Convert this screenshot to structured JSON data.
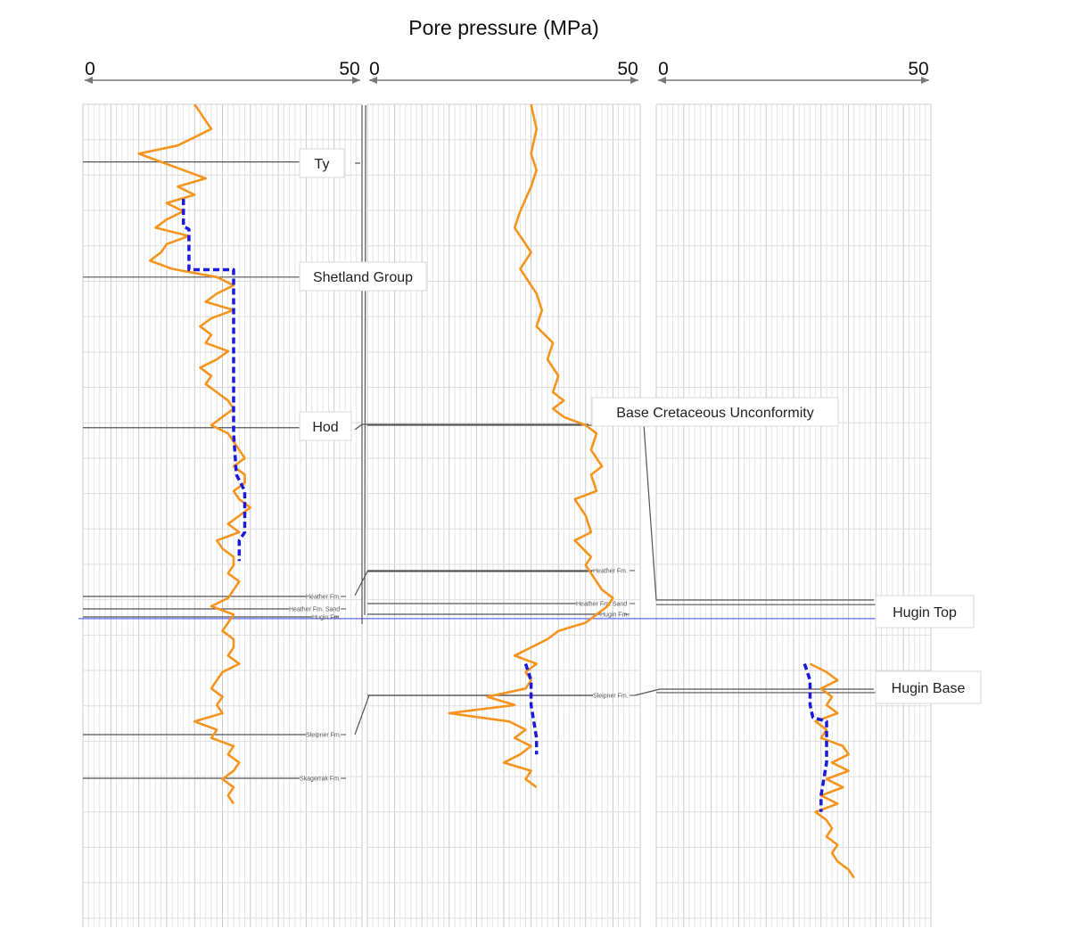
{
  "chart_data": {
    "type": "line",
    "title": "Pore pressure (MPa)",
    "panels": [
      {
        "xlim": [
          0,
          50
        ],
        "tick_labels": [
          "0",
          "50"
        ],
        "markers": [
          {
            "label": "Ty",
            "style": "box"
          },
          {
            "label": "Shetland Group",
            "style": "box"
          },
          {
            "label": "Hod",
            "style": "box"
          },
          {
            "label": "Heather Fm.",
            "style": "small"
          },
          {
            "label": "Heather Fm. Sand",
            "style": "small"
          },
          {
            "label": "Hugin Fm.",
            "style": "small"
          },
          {
            "label": "Sleipner Fm.",
            "style": "small"
          },
          {
            "label": "Skagerrak Fm.",
            "style": "small"
          }
        ],
        "series": [
          {
            "color": "#f7941d",
            "style": "solid",
            "points": [
              [
                20,
                0
              ],
              [
                21,
                1
              ],
              [
                22,
                2
              ],
              [
                23,
                3
              ],
              [
                20,
                4
              ],
              [
                17,
                5
              ],
              [
                10,
                6
              ],
              [
                14,
                7
              ],
              [
                18,
                8
              ],
              [
                22,
                9
              ],
              [
                17,
                10
              ],
              [
                20,
                11
              ],
              [
                15,
                12
              ],
              [
                18,
                13
              ],
              [
                15,
                14
              ],
              [
                13,
                15
              ],
              [
                19,
                16
              ],
              [
                15,
                17
              ],
              [
                14,
                18
              ],
              [
                12,
                19
              ],
              [
                16,
                20
              ],
              [
                24,
                21
              ],
              [
                27,
                22
              ],
              [
                24,
                23
              ],
              [
                22,
                24
              ],
              [
                27,
                25
              ],
              [
                23,
                26
              ],
              [
                21,
                27
              ],
              [
                23,
                28
              ],
              [
                22,
                29
              ],
              [
                26,
                30
              ],
              [
                24,
                31
              ],
              [
                21,
                32
              ],
              [
                23,
                33
              ],
              [
                22,
                34
              ],
              [
                24,
                35
              ],
              [
                26,
                36
              ],
              [
                27,
                37
              ],
              [
                25,
                38
              ],
              [
                23,
                39
              ],
              [
                26,
                40
              ],
              [
                27,
                41
              ],
              [
                28,
                42
              ],
              [
                29,
                43
              ],
              [
                27,
                44
              ],
              [
                29,
                45
              ],
              [
                29,
                46
              ],
              [
                27,
                47
              ],
              [
                28,
                48
              ],
              [
                30,
                49
              ],
              [
                28,
                50
              ],
              [
                26,
                51
              ],
              [
                28,
                52
              ],
              [
                24,
                53
              ],
              [
                25,
                54
              ],
              [
                27,
                55
              ],
              [
                27,
                56
              ],
              [
                26,
                57
              ],
              [
                28,
                58
              ],
              [
                27,
                59
              ],
              [
                26,
                60
              ],
              [
                23,
                61
              ],
              [
                27,
                62
              ],
              [
                26,
                63
              ],
              [
                25,
                64
              ],
              [
                27,
                65
              ],
              [
                27,
                66
              ],
              [
                26,
                67
              ],
              [
                28,
                68
              ],
              [
                25,
                69
              ],
              [
                24,
                70
              ],
              [
                23,
                71
              ],
              [
                25,
                72
              ],
              [
                24,
                73
              ],
              [
                25,
                74
              ],
              [
                20,
                75
              ],
              [
                24,
                76
              ],
              [
                23,
                77
              ],
              [
                27,
                78
              ],
              [
                26,
                79
              ],
              [
                28,
                80
              ],
              [
                27,
                81
              ],
              [
                25,
                82
              ],
              [
                27,
                83
              ],
              [
                26,
                84
              ],
              [
                27,
                85
              ]
            ]
          },
          {
            "color": "#1a1adc",
            "style": "dashed",
            "points": [
              [
                18,
                11.5
              ],
              [
                18,
                14.8
              ],
              [
                19,
                15.2
              ],
              [
                19,
                19
              ],
              [
                19,
                20.1
              ],
              [
                27,
                20.1
              ],
              [
                27,
                40
              ],
              [
                27.5,
                45
              ],
              [
                29,
                47
              ],
              [
                29,
                52
              ],
              [
                28,
                53
              ],
              [
                28,
                55.5
              ]
            ]
          }
        ]
      },
      {
        "xlim": [
          0,
          50
        ],
        "tick_labels": [
          "0",
          "50"
        ],
        "markers": [
          {
            "label": "Base Cretaceous Unconformity",
            "style": "box"
          },
          {
            "label": "Heather Fm.",
            "style": "small"
          },
          {
            "label": "Heather Fm. Sand",
            "style": "small"
          },
          {
            "label": "Hugin Fm.",
            "style": "small"
          },
          {
            "label": "Sleipner Fm.",
            "style": "small"
          }
        ],
        "series": [
          {
            "color": "#f7941d",
            "style": "solid",
            "points": [
              [
                30,
                0
              ],
              [
                31,
                3
              ],
              [
                30,
                6
              ],
              [
                31,
                8
              ],
              [
                30,
                10
              ],
              [
                28,
                13
              ],
              [
                27,
                15
              ],
              [
                30,
                18
              ],
              [
                28,
                20
              ],
              [
                30,
                22
              ],
              [
                31,
                23
              ],
              [
                32,
                25
              ],
              [
                31,
                27
              ],
              [
                34,
                29
              ],
              [
                33,
                31
              ],
              [
                35,
                33
              ],
              [
                34,
                35
              ],
              [
                36,
                36
              ],
              [
                34,
                37
              ],
              [
                36,
                38
              ],
              [
                40,
                39
              ],
              [
                41,
                39.5
              ],
              [
                42,
                40
              ],
              [
                41,
                42
              ],
              [
                43,
                44
              ],
              [
                41,
                45
              ],
              [
                42,
                47
              ],
              [
                38,
                48
              ],
              [
                40,
                50
              ],
              [
                41,
                52
              ],
              [
                38,
                53
              ],
              [
                41,
                55
              ],
              [
                40,
                56
              ],
              [
                42,
                58
              ],
              [
                43,
                59
              ],
              [
                45,
                60
              ],
              [
                44,
                61
              ],
              [
                42,
                62
              ],
              [
                40,
                63
              ],
              [
                35,
                64
              ],
              [
                33,
                65
              ],
              [
                30,
                66
              ],
              [
                27,
                67
              ],
              [
                31,
                68
              ],
              [
                29,
                69
              ],
              [
                30,
                70
              ],
              [
                29,
                71
              ],
              [
                22,
                72
              ],
              [
                27,
                73
              ],
              [
                15,
                74
              ],
              [
                26,
                75
              ],
              [
                29,
                76
              ],
              [
                27,
                77
              ],
              [
                30,
                78
              ],
              [
                28,
                79
              ],
              [
                25,
                80
              ],
              [
                30,
                81
              ],
              [
                29,
                82
              ],
              [
                31,
                83
              ]
            ]
          },
          {
            "color": "#1a1adc",
            "style": "dashed",
            "points": [
              [
                29,
                68
              ],
              [
                30,
                70
              ],
              [
                30,
                73
              ],
              [
                31,
                77
              ],
              [
                31,
                79
              ]
            ]
          }
        ]
      },
      {
        "xlim": [
          0,
          50
        ],
        "tick_labels": [
          "0",
          "50"
        ],
        "markers": [
          {
            "label": "Hugin Top",
            "style": "box"
          },
          {
            "label": "Hugin Base",
            "style": "box"
          }
        ],
        "series": [
          {
            "color": "#f7941d",
            "style": "solid",
            "points": [
              [
                28,
                68
              ],
              [
                31,
                69
              ],
              [
                33,
                70
              ],
              [
                30,
                71
              ],
              [
                32,
                72
              ],
              [
                31,
                73
              ],
              [
                33,
                74
              ],
              [
                29,
                75
              ],
              [
                31,
                76
              ],
              [
                30,
                77
              ],
              [
                34,
                78
              ],
              [
                35,
                79
              ],
              [
                32,
                80
              ],
              [
                35,
                81
              ],
              [
                31,
                82
              ],
              [
                34,
                83
              ],
              [
                30,
                84
              ],
              [
                33,
                85
              ],
              [
                29,
                86
              ],
              [
                31,
                87
              ],
              [
                32,
                88
              ],
              [
                31,
                89
              ],
              [
                33,
                90
              ],
              [
                32,
                91
              ],
              [
                33,
                92
              ],
              [
                35,
                93
              ],
              [
                36,
                94
              ]
            ]
          },
          {
            "color": "#1a1adc",
            "style": "dashed",
            "points": [
              [
                27,
                68
              ],
              [
                28,
                70
              ],
              [
                28,
                73
              ],
              [
                28.5,
                74.5
              ],
              [
                31,
                75
              ],
              [
                31,
                77
              ],
              [
                31,
                80
              ],
              [
                30,
                84
              ],
              [
                30,
                86
              ]
            ]
          }
        ]
      }
    ]
  }
}
